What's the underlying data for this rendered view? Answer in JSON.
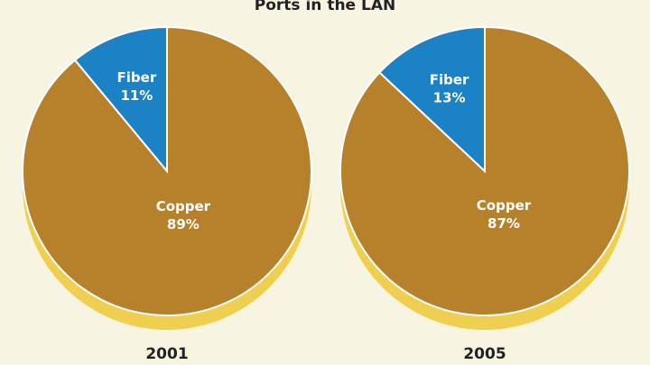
{
  "title": "Ports in the LAN",
  "chart_data": [
    {
      "type": "pie",
      "title": "2001",
      "categories": [
        "Fiber",
        "Copper"
      ],
      "values": [
        11,
        89
      ],
      "value_labels": [
        "11%",
        "89%"
      ],
      "colors": [
        "#1b82c6",
        "#b7812b"
      ]
    },
    {
      "type": "pie",
      "title": "2005",
      "categories": [
        "Fiber",
        "Copper"
      ],
      "values": [
        13,
        87
      ],
      "value_labels": [
        "13%",
        "87%"
      ],
      "colors": [
        "#1b82c6",
        "#b7812b"
      ]
    }
  ]
}
